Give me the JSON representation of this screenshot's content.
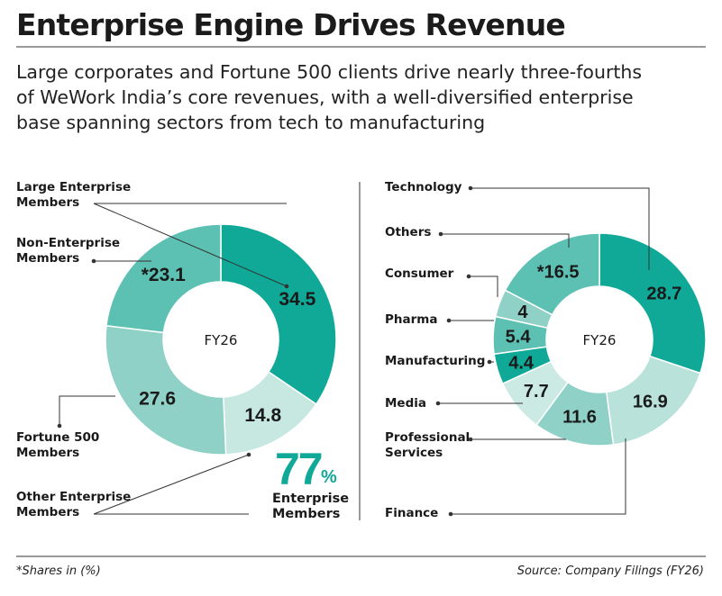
{
  "title": "Enterprise Engine Drives Revenue",
  "subtitle": [
    "Large corporates and Fortune 500 clients drive nearly three-fourths",
    "of WeWork India’s core revenues, with a well-diversified enterprise",
    "base spanning sectors from tech to manufacturing"
  ],
  "footer": {
    "note": "*Shares in (%)",
    "source": "Source: Company Filings (FY26)"
  },
  "highlight": {
    "value": "77",
    "unit": "%",
    "label_line1": "Enterprise",
    "label_line2": "Members"
  },
  "colors": {
    "dark": "#10a897",
    "medium": "#5cc0b3",
    "light": "#8fd1c6",
    "lighter": "#b8e2da",
    "pale": "#cbeae4"
  },
  "chart_data": [
    {
      "type": "donut",
      "center_label": "FY26",
      "slices": [
        {
          "name": "Large Enterprise Members",
          "label_lines": [
            "Large Enterprise",
            "Members"
          ],
          "value": 34.5,
          "display": "34.5",
          "color": "#10a897"
        },
        {
          "name": "Other Enterprise Members",
          "label_lines": [
            "Other Enterprise",
            "Members"
          ],
          "value": 14.8,
          "display": "14.8",
          "color": "#c6e8e1"
        },
        {
          "name": "Fortune 500 Members",
          "label_lines": [
            "Fortune 500",
            "Members"
          ],
          "value": 27.6,
          "display": "27.6",
          "color": "#8fd1c6"
        },
        {
          "name": "Non-Enterprise Members",
          "label_lines": [
            "Non-Enterprise",
            "Members"
          ],
          "value": 23.1,
          "display": "*23.1",
          "color": "#5cc0b3"
        }
      ]
    },
    {
      "type": "donut",
      "center_label": "FY26",
      "slices": [
        {
          "name": "Technology",
          "label_lines": [
            "Technology"
          ],
          "value": 28.7,
          "display": "28.7",
          "color": "#10a897"
        },
        {
          "name": "Finance",
          "label_lines": [
            "Finance"
          ],
          "value": 16.9,
          "display": "16.9",
          "color": "#b8e2da"
        },
        {
          "name": "Professional Services",
          "label_lines": [
            "Professional",
            "Services"
          ],
          "value": 11.6,
          "display": "11.6",
          "color": "#8fd1c6"
        },
        {
          "name": "Media",
          "label_lines": [
            "Media"
          ],
          "value": 7.7,
          "display": "7.7",
          "color": "#cbeae4"
        },
        {
          "name": "Manufacturing",
          "label_lines": [
            "Manufacturing"
          ],
          "value": 4.4,
          "display": "4.4",
          "color": "#10a897"
        },
        {
          "name": "Pharma",
          "label_lines": [
            "Pharma"
          ],
          "value": 5.4,
          "display": "5.4",
          "color": "#5cc0b3"
        },
        {
          "name": "Consumer",
          "label_lines": [
            "Consumer"
          ],
          "value": 4,
          "display": "4",
          "color": "#8fd1c6"
        },
        {
          "name": "Others",
          "label_lines": [
            "Others"
          ],
          "value": 16.5,
          "display": "*16.5",
          "color": "#5cc0b3"
        }
      ]
    }
  ]
}
